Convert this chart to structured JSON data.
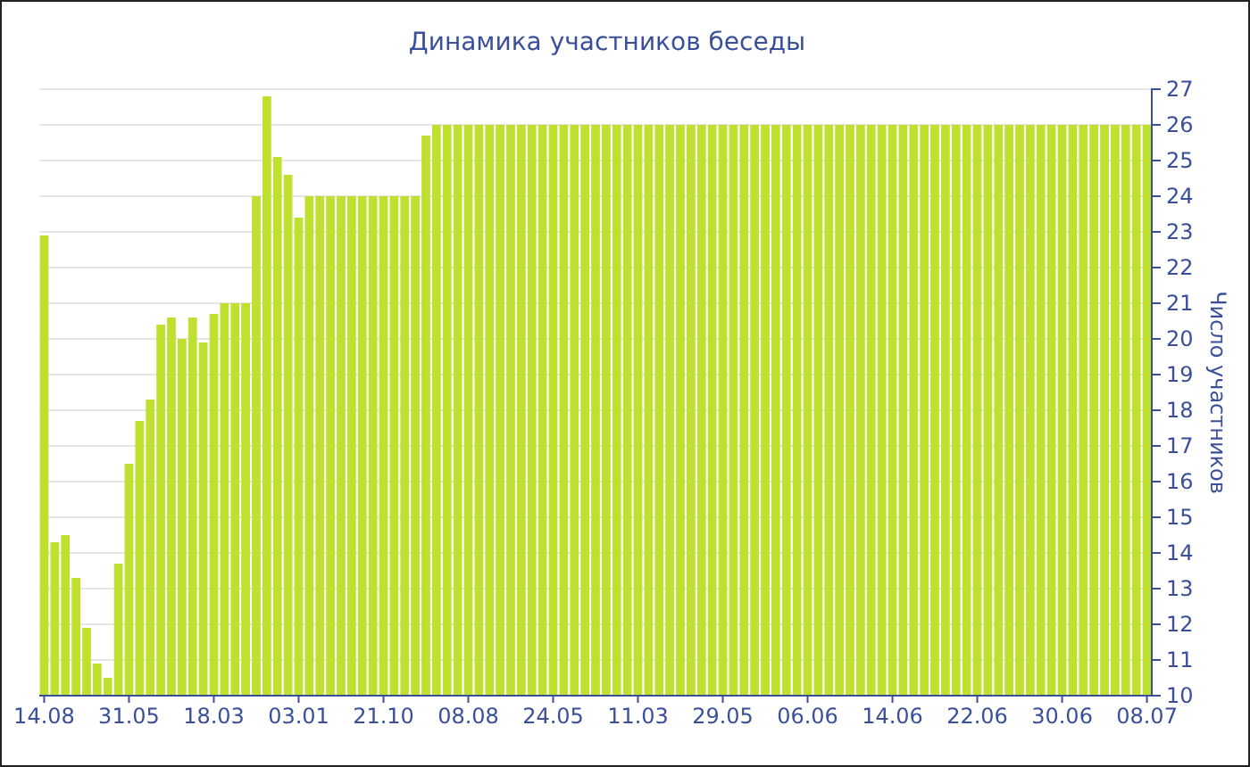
{
  "chart_data": {
    "type": "bar",
    "title": "Динамика участников беседы",
    "ylabel": "Число участников",
    "categories": [
      "14.08",
      null,
      null,
      null,
      null,
      null,
      null,
      null,
      "31.05",
      null,
      null,
      null,
      null,
      null,
      null,
      null,
      "18.03",
      null,
      null,
      null,
      null,
      null,
      null,
      null,
      "03.01",
      null,
      null,
      null,
      null,
      null,
      null,
      null,
      "21.10",
      null,
      null,
      null,
      null,
      null,
      null,
      null,
      "08.08",
      null,
      null,
      null,
      null,
      null,
      null,
      null,
      "24.05",
      null,
      null,
      null,
      null,
      null,
      null,
      null,
      "11.03",
      null,
      null,
      null,
      null,
      null,
      null,
      null,
      "29.05",
      null,
      null,
      null,
      null,
      null,
      null,
      null,
      "06.06",
      null,
      null,
      null,
      null,
      null,
      null,
      null,
      "14.06",
      null,
      null,
      null,
      null,
      null,
      null,
      null,
      "22.06",
      null,
      null,
      null,
      null,
      null,
      null,
      null,
      "30.06",
      null,
      null,
      null,
      null,
      null,
      null,
      null,
      "08.07"
    ],
    "values": [
      22.9,
      14.3,
      14.5,
      13.3,
      11.9,
      10.9,
      10.5,
      13.7,
      16.5,
      17.7,
      18.3,
      20.4,
      20.6,
      20.0,
      20.6,
      19.9,
      20.7,
      21,
      21,
      21,
      24,
      26.8,
      25.1,
      24.6,
      23.4,
      24,
      24,
      24,
      24,
      24,
      24,
      24,
      24,
      24,
      24,
      24,
      25.7,
      26,
      26,
      26,
      26,
      26,
      26,
      26,
      26,
      26,
      26,
      26,
      26,
      26,
      26,
      26,
      26,
      26,
      26,
      26,
      26,
      26,
      26,
      26,
      26,
      26,
      26,
      26,
      26,
      26,
      26,
      26,
      26,
      26,
      26,
      26,
      26,
      26,
      26,
      26,
      26,
      26,
      26,
      26,
      26,
      26,
      26,
      26,
      26,
      26,
      26,
      26,
      26,
      26,
      26,
      26,
      26,
      26,
      26,
      26,
      26,
      26,
      26,
      26,
      26,
      26,
      26,
      26,
      26
    ],
    "color": "#bfe02e",
    "ylim": [
      10,
      27
    ],
    "yticks": [
      10,
      11,
      12,
      13,
      14,
      15,
      16,
      17,
      18,
      19,
      20,
      21,
      22,
      23,
      24,
      25,
      26,
      27
    ],
    "grid": "y"
  }
}
